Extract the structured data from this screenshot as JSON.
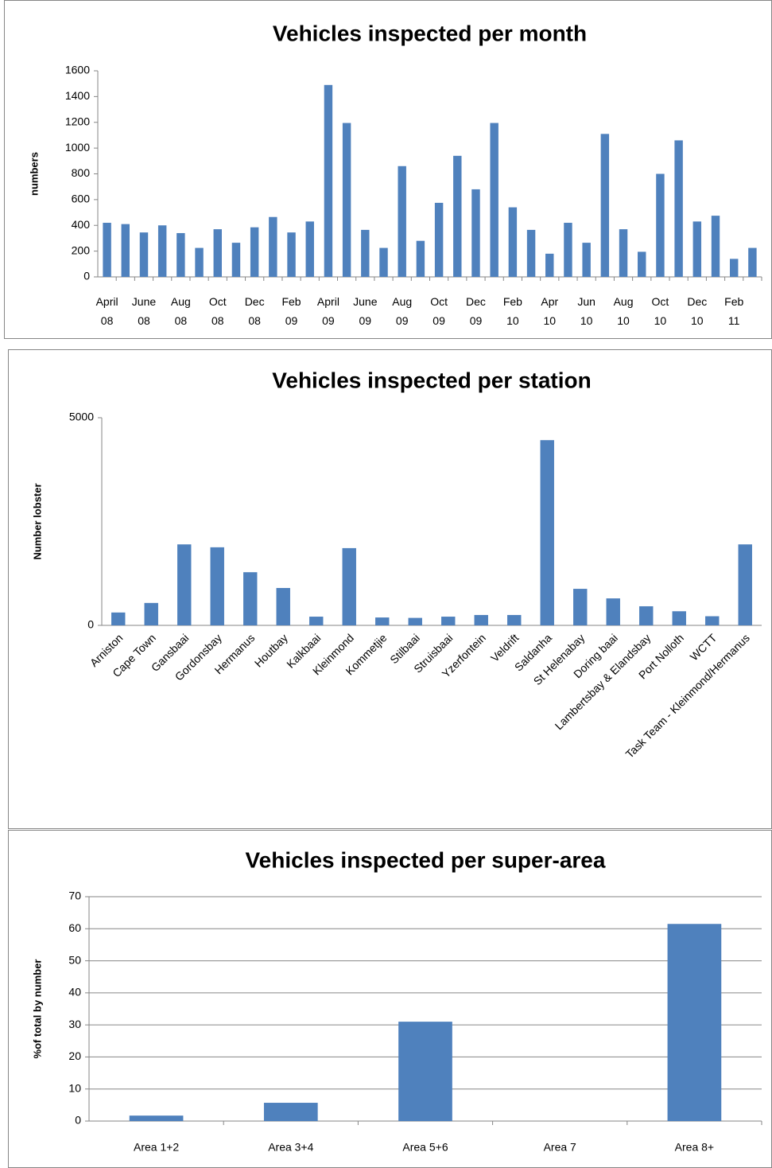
{
  "chart_data": [
    {
      "type": "bar",
      "title": "Vehicles inspected per month",
      "y_label": "numbers",
      "color": "#4f81bd",
      "grid": false,
      "categories": [
        "April 08",
        null,
        "June 08",
        null,
        "Aug 08",
        null,
        "Oct 08",
        null,
        "Dec 08",
        null,
        "Feb 09",
        null,
        "April 09",
        null,
        "June 09",
        null,
        "Aug 09",
        null,
        "Oct 09",
        null,
        "Dec 09",
        null,
        "Feb 10",
        null,
        "Apr 10",
        null,
        "Jun 10",
        null,
        "Aug 10",
        null,
        "Oct 10",
        null,
        "Dec 10",
        null,
        "Feb 11",
        null
      ],
      "values": [
        420,
        410,
        345,
        400,
        340,
        225,
        370,
        265,
        385,
        465,
        345,
        430,
        1490,
        1195,
        365,
        225,
        860,
        280,
        575,
        940,
        680,
        1195,
        540,
        365,
        180,
        420,
        265,
        1110,
        370,
        195,
        800,
        1060,
        430,
        475,
        140,
        225
      ],
      "ylim": [
        0,
        1600
      ],
      "yticks": [
        0,
        200,
        400,
        600,
        800,
        1000,
        1200,
        1400,
        1600
      ]
    },
    {
      "type": "bar",
      "title": "Vehicles inspected per station",
      "y_label": "Number lobster",
      "color": "#4f81bd",
      "grid": false,
      "categories": [
        "Arniston",
        "Cape Town",
        "Gansbaai",
        "Gordonsbay",
        "Hermanus",
        "Houtbay",
        "Kalkbaai",
        "Kleinmond",
        "Kommetjie",
        "Stilbaai",
        "Struisbaai",
        "Yzerfontein",
        "Veldrift",
        "Saldanha",
        "St Helenabay",
        "Doring baai",
        "Lambertsbay & Elandsbay",
        "Port Nolloth",
        "WCTT",
        "Task Team - Kleinmond/Hermanus"
      ],
      "values": [
        310,
        540,
        1950,
        1880,
        1280,
        900,
        210,
        1860,
        190,
        180,
        210,
        250,
        250,
        4460,
        880,
        650,
        460,
        340,
        220,
        1950
      ],
      "ylim": [
        0,
        5000
      ],
      "yticks": [
        0,
        5000
      ]
    },
    {
      "type": "bar",
      "title": "Vehicles inspected per super-area",
      "y_label": "%of total by number",
      "color": "#4f81bd",
      "grid": true,
      "categories": [
        "Area 1+2",
        "Area 3+4",
        "Area 5+6",
        "Area 7",
        "Area 8+"
      ],
      "values": [
        1.7,
        5.7,
        31,
        0,
        61.5
      ],
      "ylim": [
        0,
        70
      ],
      "yticks": [
        0,
        10,
        20,
        30,
        40,
        50,
        60,
        70
      ]
    }
  ]
}
